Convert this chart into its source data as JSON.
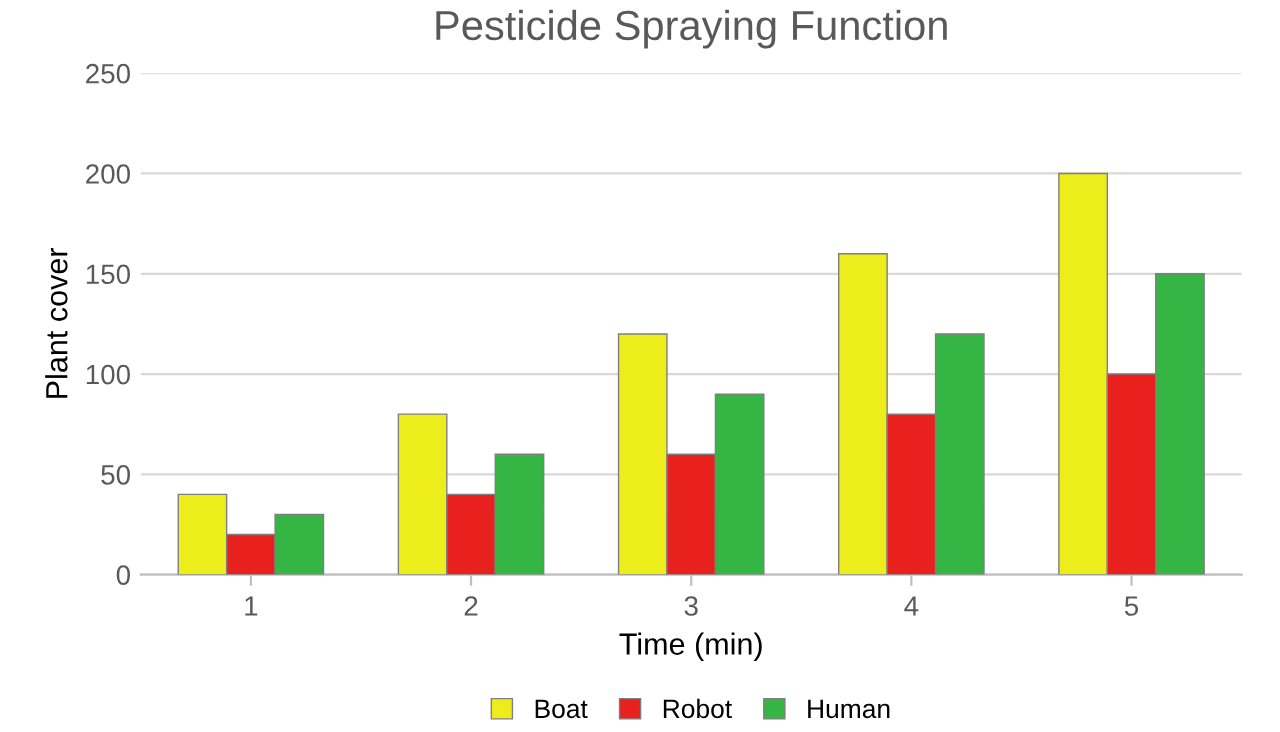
{
  "chart_data": {
    "type": "bar",
    "title": "Pesticide Spraying Function",
    "xlabel": "Time (min)",
    "ylabel": "Plant cover",
    "categories": [
      "1",
      "2",
      "3",
      "4",
      "5"
    ],
    "series": [
      {
        "name": "Boat",
        "color": "#eded1c",
        "values": [
          40,
          80,
          120,
          160,
          200
        ]
      },
      {
        "name": "Robot",
        "color": "#e8211f",
        "values": [
          20,
          40,
          60,
          80,
          100
        ]
      },
      {
        "name": "Human",
        "color": "#35b544",
        "values": [
          30,
          60,
          90,
          120,
          150
        ]
      }
    ],
    "ylim": [
      0,
      250
    ],
    "yticks": [
      0,
      50,
      100,
      150,
      200,
      250
    ],
    "grid": "y",
    "legend": "bottom"
  }
}
